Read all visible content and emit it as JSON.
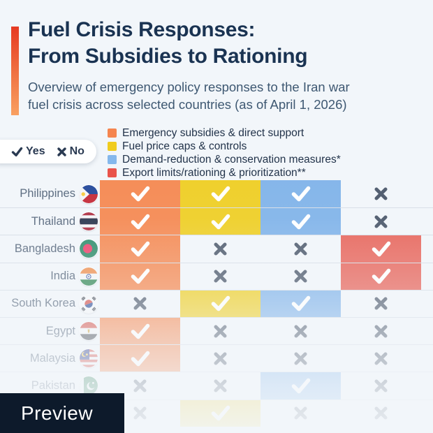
{
  "chart_data": {
    "type": "table",
    "title_line1": "Fuel Crisis Responses:",
    "title_line2": "From Subsidies to Rationing",
    "subtitle_line1": "Overview of emergency policy responses to the Iran war",
    "subtitle_line2": "fuel crisis across selected countries (as of April 1, 2026)",
    "value_key": {
      "yes_label": "Yes",
      "no_label": "No"
    },
    "legend_position": "top",
    "columns": [
      {
        "id": "subsidies",
        "label": "Emergency subsidies & direct support",
        "swatch_color": "#F5854F",
        "cell_color": "#F58D58"
      },
      {
        "id": "price_caps",
        "label": "Fuel price caps & controls",
        "swatch_color": "#F0CC1E",
        "cell_color": "#EFD02C"
      },
      {
        "id": "demand_reduction",
        "label": "Demand-reduction & conservation measures*",
        "swatch_color": "#85B8EC",
        "cell_color": "#85B6EA"
      },
      {
        "id": "export_limits",
        "label": "Export limits/rationing & prioritization**",
        "swatch_color": "#E9534A",
        "cell_color": "#E8695F"
      }
    ],
    "rows": [
      {
        "country": "Philippines",
        "flag": "philippines-flag",
        "values": [
          "yes",
          "yes",
          "yes",
          "no"
        ]
      },
      {
        "country": "Thailand",
        "flag": "thailand-flag",
        "values": [
          "yes",
          "yes",
          "yes",
          "no"
        ]
      },
      {
        "country": "Bangladesh",
        "flag": "bangladesh-flag",
        "values": [
          "yes",
          "no",
          "no",
          "yes"
        ]
      },
      {
        "country": "India",
        "flag": "india-flag",
        "values": [
          "yes",
          "no",
          "no",
          "yes"
        ]
      },
      {
        "country": "South Korea",
        "flag": "south-korea-flag",
        "values": [
          "no",
          "yes",
          "yes",
          "no"
        ]
      },
      {
        "country": "Egypt",
        "flag": "egypt-flag",
        "values": [
          "yes",
          "no",
          "no",
          "no"
        ]
      },
      {
        "country": "Malaysia",
        "flag": "malaysia-flag",
        "values": [
          "yes",
          "no",
          "no",
          "no"
        ]
      },
      {
        "country": "Pakistan",
        "flag": "pakistan-flag",
        "values": [
          "no",
          "no",
          "yes",
          "no"
        ]
      },
      {
        "country": "",
        "flag": "",
        "values": [
          "no",
          "yes",
          "no",
          "no"
        ]
      }
    ]
  },
  "preview": {
    "label": "Preview"
  },
  "colors": {
    "background": "#F2F6FA",
    "title": "#1A3352",
    "subtitle": "#3E5872",
    "row_label": "#5C6C80",
    "check_mark": "#FFFFFF",
    "x_mark": "#525E70",
    "key_icon": "#2A3A52",
    "accent_bar_top": "#E63A22",
    "accent_bar_bottom": "#F9A061",
    "preview_background": "#0D1A2B",
    "preview_text": "#FFFFFF"
  }
}
